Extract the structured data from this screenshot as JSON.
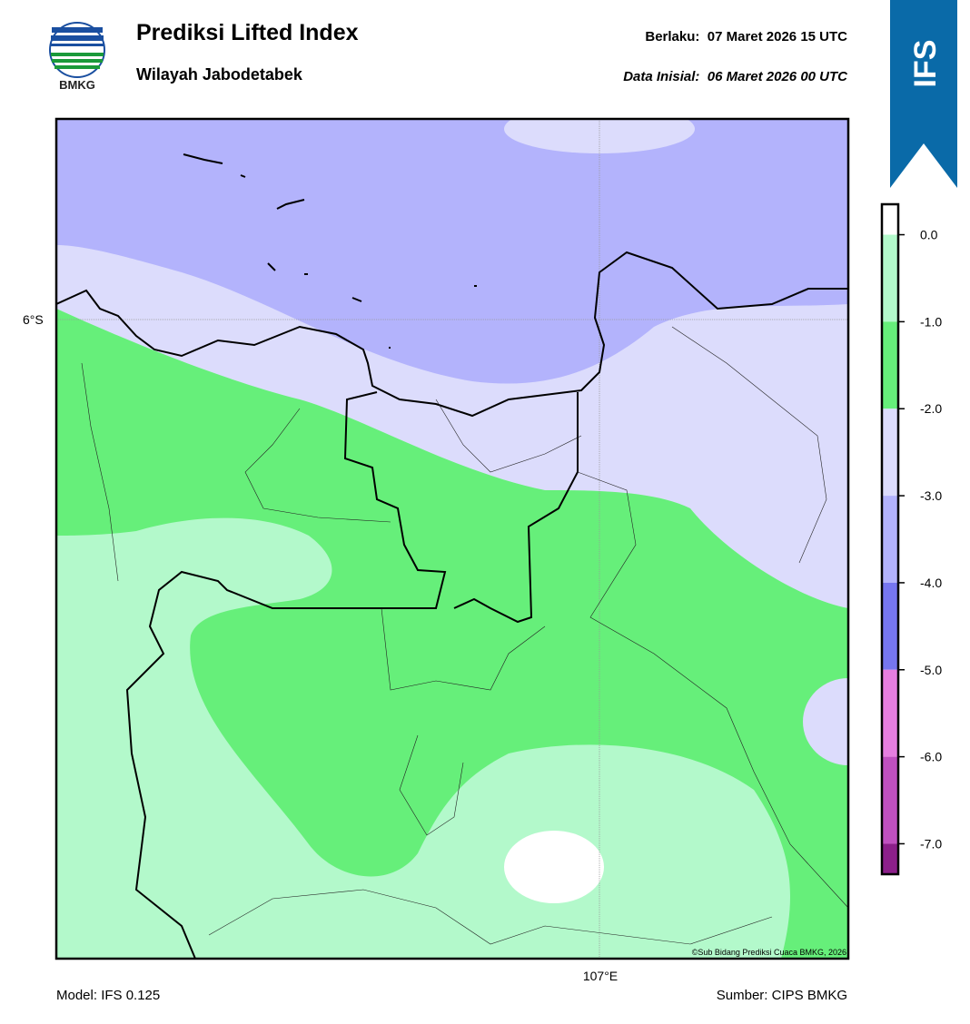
{
  "header": {
    "logo_text": "BMKG",
    "title": "Prediksi Lifted Index",
    "subtitle": "Wilayah Jabodetabek",
    "valid_label": "Berlaku:",
    "valid_time": "07 Maret 2026 15 UTC",
    "init_label": "Data Inisial:",
    "init_time": "06 Maret 2026 00 UTC",
    "badge": "IFS"
  },
  "map": {
    "lat_label": "6°S",
    "lon_label": "107°E",
    "copyright": "©Sub Bidang Prediksi Cuaca BMKG, 2026"
  },
  "colorbar": {
    "ticks": [
      {
        "value": 0,
        "label": "0.0"
      },
      {
        "value": -1,
        "label": "-1.0"
      },
      {
        "value": -2,
        "label": "-2.0"
      },
      {
        "value": -3,
        "label": "-3.0"
      },
      {
        "value": -4,
        "label": "-4.0"
      },
      {
        "value": -5,
        "label": "-5.0"
      },
      {
        "value": -6,
        "label": "-6.0"
      },
      {
        "value": -7,
        "label": "-7.0"
      }
    ],
    "bounds": [
      0.35,
      0,
      -1,
      -2,
      -3,
      -4,
      -5,
      -6,
      -7,
      -7.35
    ],
    "colors": [
      "#ffffff",
      "#b3f9cb",
      "#66ef7a",
      "#dcdcfc",
      "#b3b3fc",
      "#7676f0",
      "#e67ee0",
      "#c050c0",
      "#8c1f8a"
    ]
  },
  "footer": {
    "model": "Model: IFS 0.125",
    "source": "Sumber: CIPS BMKG"
  }
}
